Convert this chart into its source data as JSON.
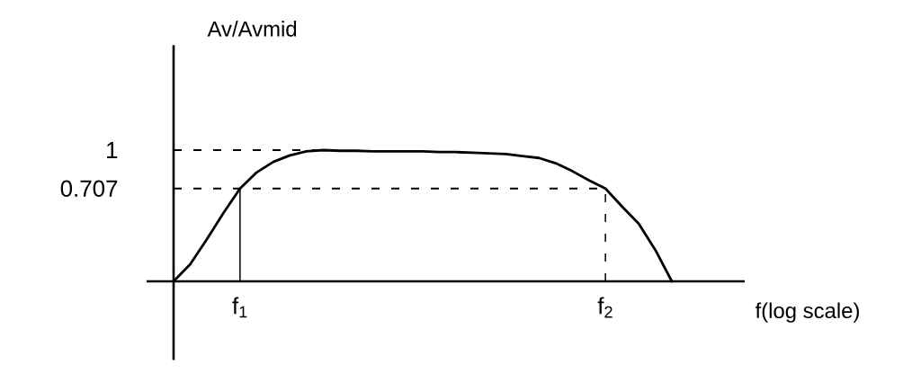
{
  "chart_data": {
    "type": "line",
    "xlabel": "f(log scale)",
    "ylabel": "Av/Avmid",
    "categories": [
      null,
      null,
      null,
      null,
      "f$_{1}$",
      null,
      null,
      null,
      null,
      null,
      null,
      null,
      null,
      null,
      null,
      null,
      null,
      null,
      null,
      null,
      null,
      null,
      null,
      null,
      null,
      null,
      "f$_{2}$",
      null,
      null,
      null,
      null
    ],
    "values": [
      0,
      0.13,
      0.32,
      0.52,
      0.707,
      0.83,
      0.91,
      0.96,
      0.99,
      1.0,
      0.995,
      0.995,
      0.99,
      0.99,
      0.99,
      0.99,
      0.985,
      0.985,
      0.98,
      0.975,
      0.97,
      0.955,
      0.94,
      0.9,
      0.84,
      0.77,
      0.707,
      0.57,
      0.44,
      0.24,
      0
    ],
    "color": "#000000",
    "marker": "none",
    "line_style": "solid",
    "ylim": [
      -0.6,
      1.8
    ],
    "yticks": [
      0.707,
      1
    ],
    "ref_lines": [
      {
        "axis": "y",
        "value": 1,
        "line_style": "dashed"
      },
      {
        "axis": "y",
        "value": 0.707,
        "line_style": "dashed"
      },
      {
        "axis": "x",
        "value": "f$_{1}$",
        "line_style": "solid"
      },
      {
        "axis": "x",
        "value": "f$_{2}$",
        "line_style": "dashed"
      }
    ]
  }
}
